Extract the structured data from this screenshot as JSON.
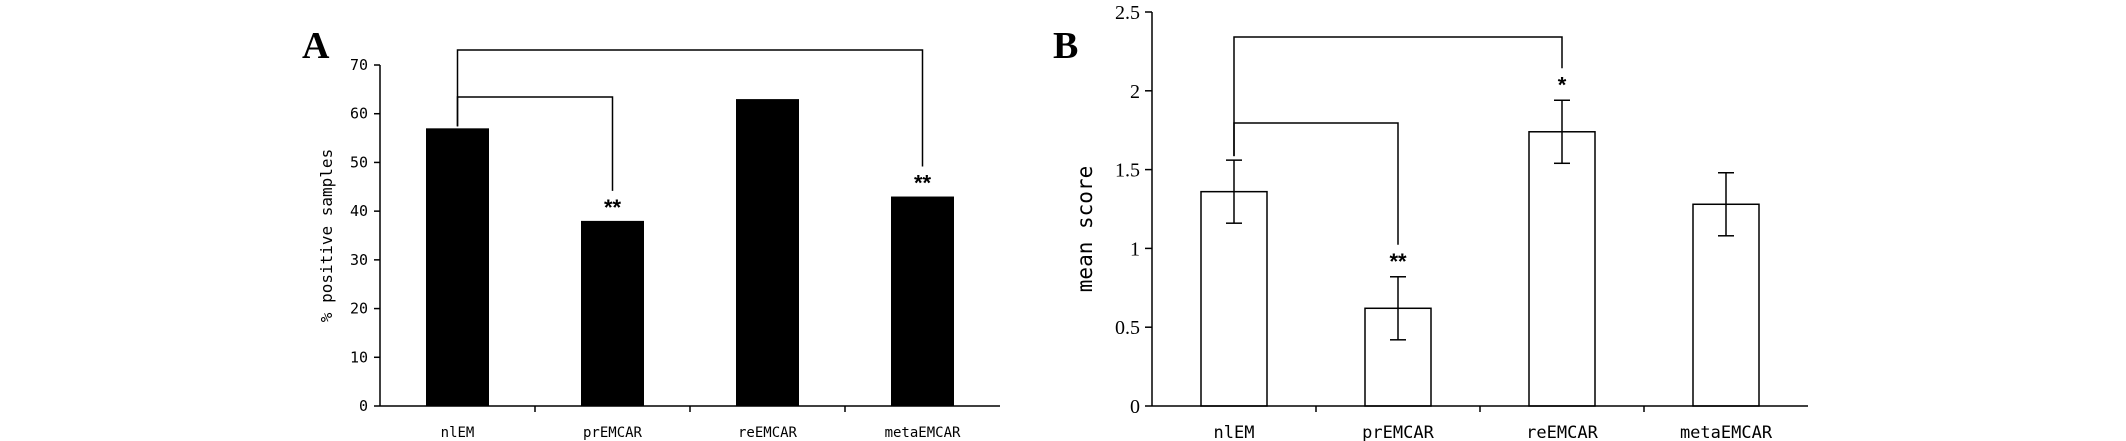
{
  "chart_data": [
    {
      "panel": "A",
      "type": "bar",
      "categories": [
        "nlEM",
        "prEMCAR",
        "reEMCAR",
        "metaEMCAR"
      ],
      "values": [
        57,
        38,
        63,
        43
      ],
      "ylabel": "% positive samples",
      "xlabel": "",
      "ylim": [
        0,
        70
      ],
      "yticks": [
        0,
        10,
        20,
        30,
        40,
        50,
        60,
        70
      ],
      "bar_color": "#000000",
      "significance": [
        {
          "from": "nlEM",
          "to": "prEMCAR",
          "label": "**"
        },
        {
          "from": "nlEM",
          "to": "metaEMCAR",
          "label": "**"
        }
      ],
      "grid": false
    },
    {
      "panel": "B",
      "type": "bar",
      "categories": [
        "nlEM",
        "prEMCAR",
        "reEMCAR",
        "metaEMCAR"
      ],
      "values": [
        1.36,
        0.62,
        1.74,
        1.28
      ],
      "errors": [
        0.2,
        0.2,
        0.2,
        0.2
      ],
      "ylabel": "mean score",
      "xlabel": "",
      "ylim": [
        0,
        2.5
      ],
      "yticks": [
        "0",
        "0.5",
        "1",
        "1.5",
        "2",
        "2.5"
      ],
      "bar_color": "#ffffff",
      "significance": [
        {
          "from": "nlEM",
          "to": "prEMCAR",
          "label": "**"
        },
        {
          "from": "nlEM",
          "to": "reEMCAR",
          "label": "*"
        }
      ],
      "grid": false
    }
  ]
}
